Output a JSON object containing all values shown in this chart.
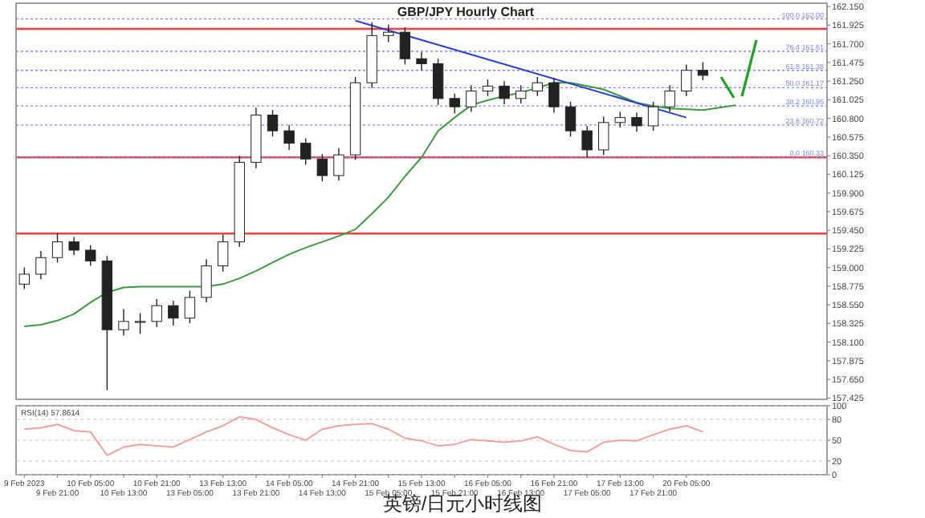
{
  "chart_data": [
    {
      "type": "candlestick",
      "title": "GBP/JPY Hourly Chart",
      "tick_labels": "y",
      "grid": false,
      "ohlc": [
        [
          158.8,
          159.0,
          158.74,
          158.92
        ],
        [
          158.92,
          159.2,
          158.86,
          159.12
        ],
        [
          159.12,
          159.41,
          159.06,
          159.31
        ],
        [
          159.31,
          159.37,
          159.15,
          159.21
        ],
        [
          159.21,
          159.27,
          159.02,
          159.08
        ],
        [
          159.08,
          159.14,
          157.52,
          158.25
        ],
        [
          158.25,
          158.5,
          158.18,
          158.35
        ],
        [
          158.35,
          158.45,
          158.2,
          158.35
        ],
        [
          158.35,
          158.62,
          158.28,
          158.54
        ],
        [
          158.54,
          158.6,
          158.3,
          158.39
        ],
        [
          158.39,
          158.72,
          158.33,
          158.64
        ],
        [
          158.64,
          159.1,
          158.58,
          159.02
        ],
        [
          159.02,
          159.4,
          158.95,
          159.31
        ],
        [
          159.31,
          160.35,
          159.25,
          160.27
        ],
        [
          160.27,
          160.93,
          160.2,
          160.84
        ],
        [
          160.84,
          160.9,
          160.58,
          160.65
        ],
        [
          160.65,
          160.72,
          160.42,
          160.5
        ],
        [
          160.5,
          160.56,
          160.24,
          160.31
        ],
        [
          160.31,
          160.37,
          160.04,
          160.11
        ],
        [
          160.11,
          160.44,
          160.05,
          160.36
        ],
        [
          160.36,
          161.3,
          160.3,
          161.23
        ],
        [
          161.23,
          161.96,
          161.17,
          161.8
        ],
        [
          161.8,
          161.93,
          161.72,
          161.84
        ],
        [
          161.84,
          161.9,
          161.45,
          161.52
        ],
        [
          161.52,
          161.6,
          161.38,
          161.46
        ],
        [
          161.46,
          161.52,
          160.96,
          161.04
        ],
        [
          161.04,
          161.1,
          160.86,
          160.94
        ],
        [
          160.94,
          161.2,
          160.88,
          161.13
        ],
        [
          161.13,
          161.27,
          161.07,
          161.19
        ],
        [
          161.19,
          161.25,
          160.97,
          161.04
        ],
        [
          161.04,
          161.2,
          160.98,
          161.13
        ],
        [
          161.13,
          161.3,
          161.07,
          161.23
        ],
        [
          161.23,
          161.29,
          160.87,
          160.94
        ],
        [
          160.94,
          161.0,
          160.58,
          160.65
        ],
        [
          160.65,
          160.71,
          160.33,
          160.42
        ],
        [
          160.42,
          160.82,
          160.36,
          160.75
        ],
        [
          160.75,
          160.88,
          160.69,
          160.81
        ],
        [
          160.81,
          160.87,
          160.64,
          160.71
        ],
        [
          160.71,
          161.0,
          160.65,
          160.94
        ],
        [
          160.94,
          161.2,
          160.88,
          161.13
        ],
        [
          161.13,
          161.45,
          161.07,
          161.38
        ],
        [
          161.38,
          161.48,
          161.26,
          161.32
        ],
        null,
        null,
        null,
        null,
        null,
        null,
        null
      ],
      "series": [
        {
          "type": "line",
          "color": "#3c9a3c",
          "values": [
            158.29,
            158.31,
            158.36,
            158.44,
            158.58,
            158.7,
            158.76,
            158.77,
            158.77,
            158.77,
            158.77,
            158.77,
            158.8,
            158.87,
            158.96,
            159.06,
            159.16,
            159.24,
            159.31,
            159.38,
            159.46,
            159.65,
            159.85,
            160.1,
            160.33,
            160.65,
            160.81,
            160.96,
            161.02,
            161.07,
            161.11,
            161.17,
            161.23,
            161.23,
            161.19,
            161.15,
            161.07,
            160.99,
            160.95,
            160.92,
            160.91,
            160.9,
            160.93,
            160.96,
            null,
            null,
            null,
            null,
            null
          ]
        },
        {
          "type": "line",
          "color": "#2a3fd6",
          "values": [
            null,
            null,
            null,
            null,
            null,
            null,
            null,
            null,
            null,
            null,
            null,
            null,
            null,
            null,
            null,
            null,
            null,
            null,
            null,
            null,
            161.98,
            null,
            null,
            null,
            null,
            null,
            null,
            null,
            null,
            null,
            null,
            null,
            null,
            null,
            null,
            null,
            null,
            null,
            null,
            null,
            160.81,
            null,
            null,
            null,
            null,
            null,
            null,
            null,
            null
          ]
        }
      ],
      "ylim": [
        157.41,
        162.19
      ],
      "yticks": [
        {
          "value": 157.425,
          "label": "157.425"
        },
        {
          "value": 157.65,
          "label": "157.650"
        },
        {
          "value": 157.875,
          "label": "157.875"
        },
        {
          "value": 158.1,
          "label": "158.100"
        },
        {
          "value": 158.325,
          "label": "158.325"
        },
        {
          "value": 158.55,
          "label": "158.550"
        },
        {
          "value": 158.775,
          "label": "158.775"
        },
        {
          "value": 159,
          "label": "159.000"
        },
        {
          "value": 159.225,
          "label": "159.225"
        },
        {
          "value": 159.45,
          "label": "159.450"
        },
        {
          "value": 159.675,
          "label": "159.675"
        },
        {
          "value": 159.9,
          "label": "159.900"
        },
        {
          "value": 160.125,
          "label": "160.125"
        },
        {
          "value": 160.35,
          "label": "160.350"
        },
        {
          "value": 160.575,
          "label": "160.575"
        },
        {
          "value": 160.8,
          "label": "160.800"
        },
        {
          "value": 161.025,
          "label": "161.025"
        },
        {
          "value": 161.25,
          "label": "161.250"
        },
        {
          "value": 161.475,
          "label": "161.475"
        },
        {
          "value": 161.7,
          "label": "161.700"
        },
        {
          "value": 161.925,
          "label": "161.925"
        },
        {
          "value": 162.15,
          "label": "162.150"
        }
      ],
      "ref_lines": [
        {
          "axis": "y",
          "value": 161.88,
          "color": "#f04040",
          "line_style": "solid"
        },
        {
          "axis": "y",
          "value": 160.33,
          "color": "#f04040",
          "line_style": "solid"
        },
        {
          "axis": "y",
          "value": 159.41,
          "color": "#f04040",
          "line_style": "solid"
        },
        {
          "axis": "y",
          "value": 162.0,
          "label": "100.0 162.00",
          "color": "#8080f0",
          "line_style": "dotted"
        },
        {
          "axis": "y",
          "value": 161.61,
          "label": "76.4 161.61",
          "color": "#8080f0",
          "line_style": "dotted"
        },
        {
          "axis": "y",
          "value": 161.38,
          "label": "61.8 161.38",
          "color": "#8080f0",
          "line_style": "dotted"
        },
        {
          "axis": "y",
          "value": 161.17,
          "label": "50.0 161.17",
          "color": "#8080f0",
          "line_style": "dotted"
        },
        {
          "axis": "y",
          "value": 160.95,
          "label": "38.2 160.95",
          "color": "#8080f0",
          "line_style": "dotted"
        },
        {
          "axis": "y",
          "value": 160.72,
          "label": "23.6 160.72",
          "color": "#8080f0",
          "line_style": "dotted"
        },
        {
          "axis": "y",
          "value": 160.33,
          "label": "0.0 160.33",
          "color": "#8080f0",
          "line_style": "dotted"
        }
      ]
    },
    {
      "type": "line",
      "grid": "y",
      "annotations": [
        "RSI(14) 57.8614",
        "英镑/日元小时线图"
      ],
      "categories": [
        "9 Feb 2023",
        null,
        "9 Feb 21:00",
        null,
        "10 Feb 05:00",
        null,
        "10 Feb 13:00",
        null,
        "10 Feb 21:00",
        null,
        "13 Feb 05:00",
        null,
        "13 Feb 13:00",
        null,
        "13 Feb 21:00",
        null,
        "14 Feb 05:00",
        null,
        "14 Feb 13:00",
        null,
        "14 Feb 21:00",
        null,
        "15 Feb 05:00",
        null,
        "15 Feb 13:00",
        null,
        "15 Feb 21:00",
        null,
        "16 Feb 05:00",
        null,
        "16 Feb 13:00",
        null,
        "16 Feb 21:00",
        null,
        "17 Feb 05:00",
        null,
        "17 Feb 13:00",
        null,
        "17 Feb 21:00",
        null,
        "20 Feb 05:00",
        null,
        null,
        null,
        null,
        null,
        null,
        null,
        null
      ],
      "series": [
        {
          "color": "#f4a0a0",
          "values": [
            66,
            68,
            73,
            64,
            62,
            28,
            40,
            44,
            42,
            40,
            51,
            62,
            71,
            84,
            80,
            68,
            58,
            50,
            66,
            71,
            73,
            74,
            66,
            53,
            49,
            42,
            44,
            51,
            49,
            47,
            49,
            55,
            44,
            35,
            33,
            47,
            50,
            49,
            58,
            66,
            71,
            62,
            null,
            null,
            null,
            null,
            null,
            null,
            null
          ]
        }
      ],
      "ylim": [
        0,
        100
      ],
      "yticks": [
        0,
        20,
        50,
        80,
        100
      ]
    }
  ]
}
